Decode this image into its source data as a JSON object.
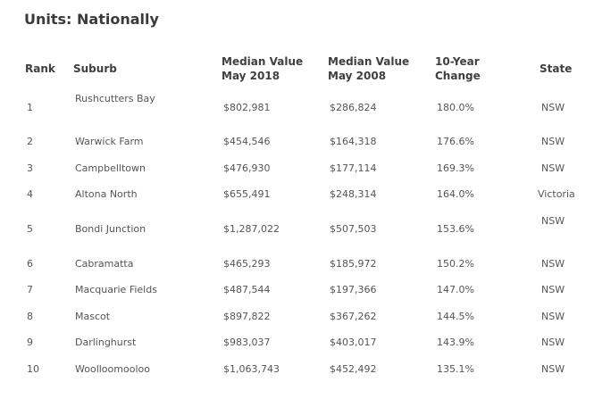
{
  "header": {
    "title": "Units: Nationally"
  },
  "table": {
    "columns": [
      [
        "Rank"
      ],
      [
        "Suburb"
      ],
      [
        "Median Value",
        "May 2018"
      ],
      [
        "Median Value",
        "May 2008"
      ],
      [
        "10-Year",
        "Change"
      ],
      [
        "State"
      ]
    ],
    "rows": [
      [
        "1",
        "Rushcutters Bay",
        "$802,981",
        "$286,824",
        "180.0%",
        "NSW"
      ],
      [
        "2",
        "Warwick Farm",
        "$454,546",
        "$164,318",
        "176.6%",
        "NSW"
      ],
      [
        "3",
        "Campbelltown",
        "$476,930",
        "$177,114",
        "169.3%",
        "NSW"
      ],
      [
        "4",
        "Altona North",
        "$655,491",
        "$248,314",
        "164.0%",
        "Victoria"
      ],
      [
        "5",
        "Bondi Junction",
        "$1,287,022",
        "$507,503",
        "153.6%",
        "NSW"
      ],
      [
        "6",
        "Cabramatta",
        "$465,293",
        "$185,972",
        "150.2%",
        "NSW"
      ],
      [
        "7",
        "Macquarie Fields",
        "$487,544",
        "$197,366",
        "147.0%",
        "NSW"
      ],
      [
        "8",
        "Mascot",
        "$897,822",
        "$367,262",
        "144.5%",
        "NSW"
      ],
      [
        "9",
        "Darlinghurst",
        "$983,037",
        "$403,017",
        "143.9%",
        "NSW"
      ],
      [
        "10",
        "Woolloomooloo",
        "$1,063,743",
        "$452,492",
        "135.1%",
        "NSW"
      ]
    ]
  }
}
